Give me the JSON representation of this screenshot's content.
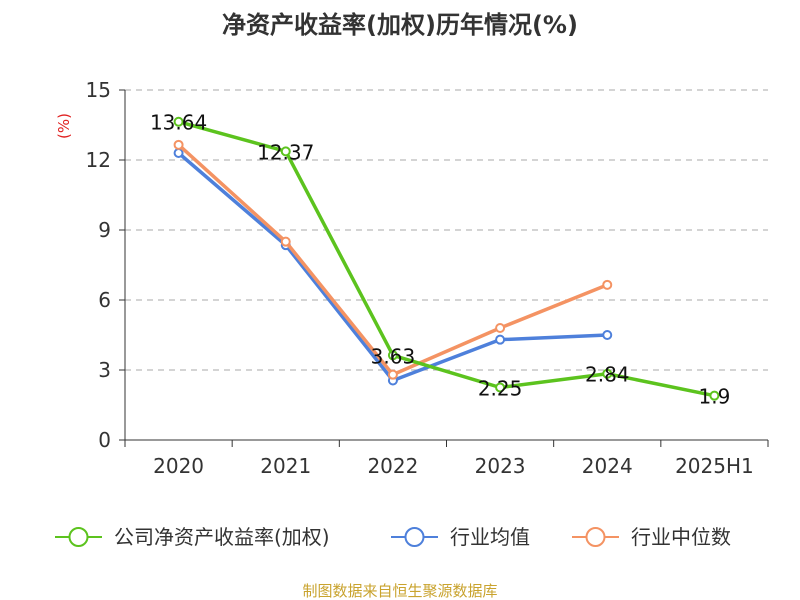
{
  "title": "净资产收益率(加权)历年情况(%)",
  "source": "制图数据来自恒生聚源数据库",
  "colors": {
    "company": "#5cc31e",
    "industry_avg": "#4e80db",
    "industry_median": "#f49363"
  },
  "chart_data": {
    "type": "line",
    "title": "净资产收益率(加权)历年情况(%)",
    "xlabel": "",
    "ylabel": "(%)",
    "categories": [
      "2020",
      "2021",
      "2022",
      "2023",
      "2024",
      "2025H1"
    ],
    "ylim": [
      0,
      15
    ],
    "yticks": [
      "0",
      "3",
      "6",
      "9",
      "12",
      "15"
    ],
    "grid": "horizontal-dashed",
    "legend_position": "bottom",
    "series": [
      {
        "name": "公司净资产收益率(加权)",
        "key": "company",
        "values": [
          13.64,
          12.37,
          3.63,
          2.25,
          2.84,
          1.9
        ],
        "labels": [
          "13.64",
          "12.37",
          "3.63",
          "2.25",
          "2.84",
          "1.9"
        ]
      },
      {
        "name": "行业均值",
        "key": "industry_avg",
        "values": [
          12.3,
          8.35,
          2.55,
          4.3,
          4.5,
          null
        ]
      },
      {
        "name": "行业中位数",
        "key": "industry_median",
        "values": [
          12.65,
          8.5,
          2.8,
          4.8,
          6.65,
          null
        ]
      }
    ]
  }
}
